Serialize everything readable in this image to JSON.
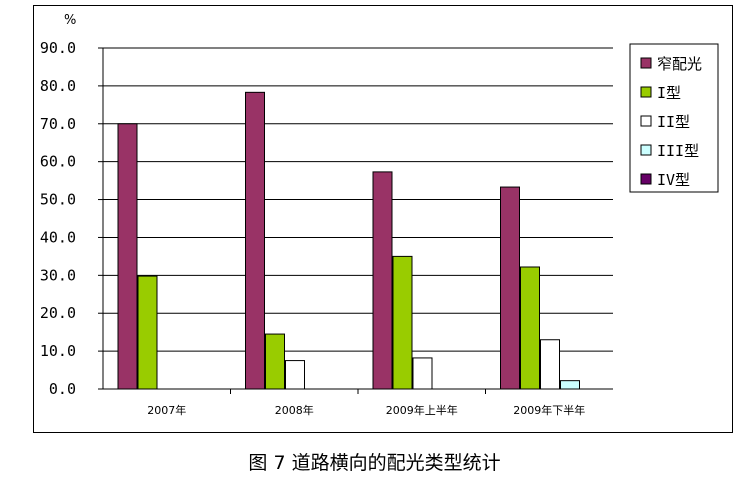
{
  "caption": "图 7 道路横向的配光类型统计",
  "chart_data": {
    "type": "bar",
    "title": "",
    "xlabel": "",
    "ylabel": "%",
    "ylim": [
      0,
      90
    ],
    "ytick_step": 10,
    "ytick_labels": [
      "0.0",
      "10.0",
      "20.0",
      "30.0",
      "40.0",
      "50.0",
      "60.0",
      "70.0",
      "80.0",
      "90.0"
    ],
    "grid": true,
    "legend_position": "right",
    "categories": [
      "2007年",
      "2008年",
      "2009年上半年",
      "2009年下半年"
    ],
    "series": [
      {
        "name": "窄配光",
        "color": "#993366",
        "values": [
          70.0,
          78.3,
          57.3,
          53.3
        ]
      },
      {
        "name": "I型",
        "color": "#99cc00",
        "values": [
          29.8,
          14.5,
          35.0,
          32.2
        ]
      },
      {
        "name": "II型",
        "color": "#ffffff",
        "values": [
          0,
          7.5,
          8.2,
          13.0
        ]
      },
      {
        "name": "III型",
        "color": "#ccffff",
        "values": [
          0,
          0,
          0,
          2.2
        ]
      },
      {
        "name": "IV型",
        "color": "#660066",
        "values": [
          0,
          0,
          0,
          0
        ]
      }
    ]
  }
}
